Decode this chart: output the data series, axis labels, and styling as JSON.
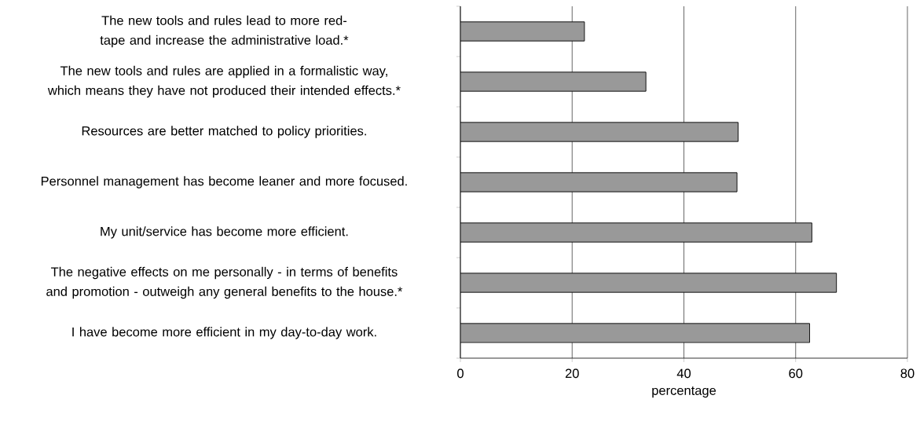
{
  "chart_data": {
    "type": "bar",
    "orientation": "horizontal",
    "categories": [
      "The new tools and rules lead to more red-tape and increase the administrative load.*",
      "The new tools and rules are applied in a formalistic way, which means they have not produced their intended effects.*",
      "Resources are better matched to policy priorities.",
      "Personnel management has become leaner and more focused.",
      "My unit/service has become more efficient.",
      "The negative effects on me personally - in terms of benefits and promotion - outweigh any general benefits to the house.*",
      "I have become more efficient in my day-to-day work."
    ],
    "values": [
      22.2,
      33.2,
      49.7,
      49.5,
      62.9,
      67.3,
      62.5
    ],
    "color": "#999999",
    "xlim": [
      0,
      80
    ],
    "xticks": [
      0,
      20,
      40,
      60,
      80
    ],
    "xlabel": "percentage",
    "grid": "x"
  }
}
